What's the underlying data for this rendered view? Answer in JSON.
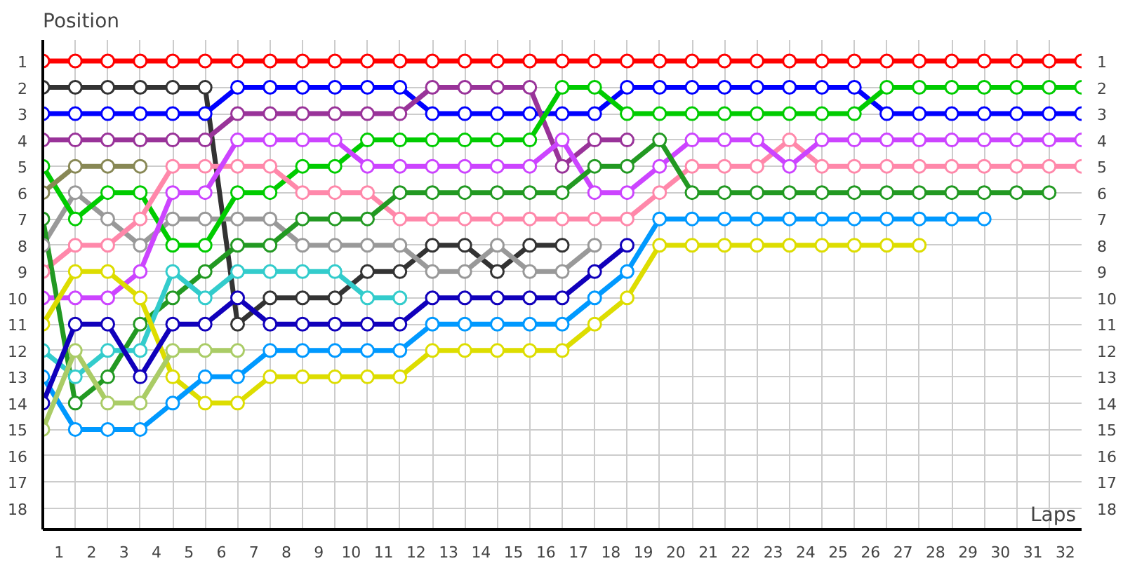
{
  "chart_data": {
    "type": "line",
    "xlabel": "Laps",
    "ylabel": "Position",
    "xlim": [
      0,
      32
    ],
    "ylim": [
      18.8,
      0.2
    ],
    "y2lim": [
      18.8,
      0.2
    ],
    "xticks": [
      {
        "value": 0,
        "label": null
      },
      {
        "value": 0.5,
        "label": "1"
      },
      {
        "value": 1,
        "label": null
      },
      {
        "value": 1.5,
        "label": "2"
      },
      {
        "value": 2,
        "label": null
      },
      {
        "value": 2.5,
        "label": "3"
      },
      {
        "value": 3,
        "label": null
      },
      {
        "value": 3.5,
        "label": "4"
      },
      {
        "value": 4,
        "label": null
      },
      {
        "value": 4.5,
        "label": "5"
      },
      {
        "value": 5,
        "label": null
      },
      {
        "value": 5.5,
        "label": "6"
      },
      {
        "value": 6,
        "label": null
      },
      {
        "value": 6.5,
        "label": "7"
      },
      {
        "value": 7,
        "label": null
      },
      {
        "value": 7.5,
        "label": "8"
      },
      {
        "value": 8,
        "label": null
      },
      {
        "value": 8.5,
        "label": "9"
      },
      {
        "value": 9,
        "label": null
      },
      {
        "value": 9.5,
        "label": "10"
      },
      {
        "value": 10,
        "label": null
      },
      {
        "value": 10.5,
        "label": "11"
      },
      {
        "value": 11,
        "label": null
      },
      {
        "value": 11.5,
        "label": "12"
      },
      {
        "value": 12,
        "label": null
      },
      {
        "value": 12.5,
        "label": "13"
      },
      {
        "value": 13,
        "label": null
      },
      {
        "value": 13.5,
        "label": "14"
      },
      {
        "value": 14,
        "label": null
      },
      {
        "value": 14.5,
        "label": "15"
      },
      {
        "value": 15,
        "label": null
      },
      {
        "value": 15.5,
        "label": "16"
      },
      {
        "value": 16,
        "label": null
      },
      {
        "value": 16.5,
        "label": "17"
      },
      {
        "value": 17,
        "label": null
      },
      {
        "value": 17.5,
        "label": "18"
      },
      {
        "value": 18,
        "label": null
      },
      {
        "value": 18.5,
        "label": "19"
      },
      {
        "value": 19,
        "label": null
      },
      {
        "value": 19.5,
        "label": "20"
      },
      {
        "value": 20,
        "label": null
      },
      {
        "value": 20.5,
        "label": "21"
      },
      {
        "value": 21,
        "label": null
      },
      {
        "value": 21.5,
        "label": "22"
      },
      {
        "value": 22,
        "label": null
      },
      {
        "value": 22.5,
        "label": "23"
      },
      {
        "value": 23,
        "label": null
      },
      {
        "value": 23.5,
        "label": "24"
      },
      {
        "value": 24,
        "label": null
      },
      {
        "value": 24.5,
        "label": "25"
      },
      {
        "value": 25,
        "label": null
      },
      {
        "value": 25.5,
        "label": "26"
      },
      {
        "value": 26,
        "label": null
      },
      {
        "value": 26.5,
        "label": "27"
      },
      {
        "value": 27,
        "label": null
      },
      {
        "value": 27.5,
        "label": "28"
      },
      {
        "value": 28,
        "label": null
      },
      {
        "value": 28.5,
        "label": "29"
      },
      {
        "value": 29,
        "label": null
      },
      {
        "value": 29.5,
        "label": "30"
      },
      {
        "value": 30,
        "label": null
      },
      {
        "value": 30.5,
        "label": "31"
      },
      {
        "value": 31,
        "label": null
      },
      {
        "value": 31.5,
        "label": "32"
      }
    ],
    "yticks": [
      1,
      2,
      3,
      4,
      5,
      6,
      7,
      8,
      9,
      10,
      11,
      12,
      13,
      14,
      15,
      16,
      17,
      18
    ],
    "y2ticks": [
      1,
      2,
      3,
      4,
      5,
      6,
      7,
      8,
      9,
      10,
      11,
      12,
      13,
      14,
      15,
      16,
      17,
      18
    ],
    "grid": true,
    "marker": "circle",
    "line_style": "solid",
    "x": [
      0,
      1,
      2,
      3,
      4,
      5,
      6,
      7,
      8,
      9,
      10,
      11,
      12,
      13,
      14,
      15,
      16,
      17,
      18,
      19,
      20,
      21,
      22,
      23,
      24,
      25,
      26,
      27,
      28,
      29,
      30,
      31,
      32
    ],
    "series": [
      {
        "color": "#ff0000",
        "values": [
          1,
          1,
          1,
          1,
          1,
          1,
          1,
          1,
          1,
          1,
          1,
          1,
          1,
          1,
          1,
          1,
          1,
          1,
          1,
          1,
          1,
          1,
          1,
          1,
          1,
          1,
          1,
          1,
          1,
          1,
          1,
          1,
          1
        ]
      },
      {
        "color": "#333333",
        "values": [
          2,
          2,
          2,
          2,
          2,
          2,
          11,
          10,
          10,
          10,
          9,
          9,
          8,
          8,
          9,
          8,
          8,
          null,
          null,
          null,
          null,
          null,
          null,
          null,
          null,
          null,
          null,
          null,
          null,
          null,
          null,
          null,
          null
        ]
      },
      {
        "color": "#999999",
        "values": [
          8,
          6,
          7,
          8,
          7,
          7,
          7,
          7,
          8,
          8,
          8,
          8,
          9,
          9,
          8,
          9,
          9,
          8,
          null,
          null,
          null,
          null,
          null,
          null,
          null,
          null,
          null,
          null,
          null,
          null,
          null,
          null,
          null
        ]
      },
      {
        "color": "#0000ff",
        "values": [
          3,
          3,
          3,
          3,
          3,
          3,
          2,
          2,
          2,
          2,
          2,
          2,
          3,
          3,
          3,
          3,
          3,
          3,
          2,
          2,
          2,
          2,
          2,
          2,
          2,
          2,
          3,
          3,
          3,
          3,
          3,
          3,
          3
        ]
      },
      {
        "color": "#993399",
        "values": [
          4,
          4,
          4,
          4,
          4,
          4,
          3,
          3,
          3,
          3,
          3,
          3,
          2,
          2,
          2,
          2,
          5,
          4,
          4,
          null,
          null,
          null,
          null,
          null,
          null,
          null,
          null,
          null,
          null,
          null,
          null,
          null,
          null
        ]
      },
      {
        "color": "#00cc00",
        "values": [
          5,
          7,
          6,
          6,
          8,
          8,
          6,
          6,
          5,
          5,
          4,
          4,
          4,
          4,
          4,
          4,
          2,
          2,
          3,
          3,
          3,
          3,
          3,
          3,
          3,
          3,
          2,
          2,
          2,
          2,
          2,
          2,
          2
        ]
      },
      {
        "color": "#888855",
        "values": [
          6,
          5,
          5,
          5,
          null,
          null,
          null,
          null,
          null,
          null,
          null,
          null,
          null,
          null,
          null,
          null,
          null,
          null,
          null,
          null,
          null,
          null,
          null,
          null,
          null,
          null,
          null,
          null,
          null,
          null,
          null,
          null,
          null
        ]
      },
      {
        "color": "#ff88aa",
        "values": [
          9,
          8,
          8,
          7,
          5,
          5,
          5,
          5,
          6,
          6,
          6,
          7,
          7,
          7,
          7,
          7,
          7,
          7,
          7,
          6,
          5,
          5,
          5,
          4,
          5,
          5,
          5,
          5,
          5,
          5,
          5,
          5,
          5
        ]
      },
      {
        "color": "#cc44ff",
        "values": [
          10,
          10,
          10,
          9,
          6,
          6,
          4,
          4,
          4,
          4,
          5,
          5,
          5,
          5,
          5,
          5,
          4,
          6,
          6,
          5,
          4,
          4,
          4,
          5,
          4,
          4,
          4,
          4,
          4,
          4,
          4,
          4,
          4
        ]
      },
      {
        "color": "#229922",
        "values": [
          7,
          14,
          13,
          11,
          10,
          9,
          8,
          8,
          7,
          7,
          7,
          6,
          6,
          6,
          6,
          6,
          6,
          5,
          5,
          4,
          6,
          6,
          6,
          6,
          6,
          6,
          6,
          6,
          6,
          6,
          6,
          6,
          null
        ]
      },
      {
        "color": "#33cccc",
        "values": [
          12,
          13,
          12,
          12,
          9,
          10,
          9,
          9,
          9,
          9,
          10,
          10,
          null,
          null,
          null,
          null,
          null,
          null,
          null,
          null,
          null,
          null,
          null,
          null,
          null,
          null,
          null,
          null,
          null,
          null,
          null,
          null,
          null
        ]
      },
      {
        "color": "#dddd00",
        "values": [
          11,
          9,
          9,
          10,
          13,
          14,
          14,
          13,
          13,
          13,
          13,
          13,
          12,
          12,
          12,
          12,
          12,
          11,
          10,
          8,
          8,
          8,
          8,
          8,
          8,
          8,
          8,
          8,
          null,
          null,
          null,
          null,
          null
        ]
      },
      {
        "color": "#0099ff",
        "values": [
          13,
          15,
          15,
          15,
          14,
          13,
          13,
          12,
          12,
          12,
          12,
          12,
          11,
          11,
          11,
          11,
          11,
          10,
          9,
          7,
          7,
          7,
          7,
          7,
          7,
          7,
          7,
          7,
          7,
          7,
          null,
          null,
          null
        ]
      },
      {
        "color": "#1100bb",
        "values": [
          14,
          11,
          11,
          13,
          11,
          11,
          10,
          11,
          11,
          11,
          11,
          11,
          10,
          10,
          10,
          10,
          10,
          9,
          8,
          null,
          null,
          null,
          null,
          null,
          null,
          null,
          null,
          null,
          null,
          null,
          null,
          null,
          null
        ]
      },
      {
        "color": "#aacc66",
        "values": [
          15,
          12,
          14,
          14,
          12,
          12,
          12,
          null,
          null,
          null,
          null,
          null,
          null,
          null,
          null,
          null,
          null,
          null,
          null,
          null,
          null,
          null,
          null,
          null,
          null,
          null,
          null,
          null,
          null,
          null,
          null,
          null,
          null
        ]
      }
    ]
  }
}
